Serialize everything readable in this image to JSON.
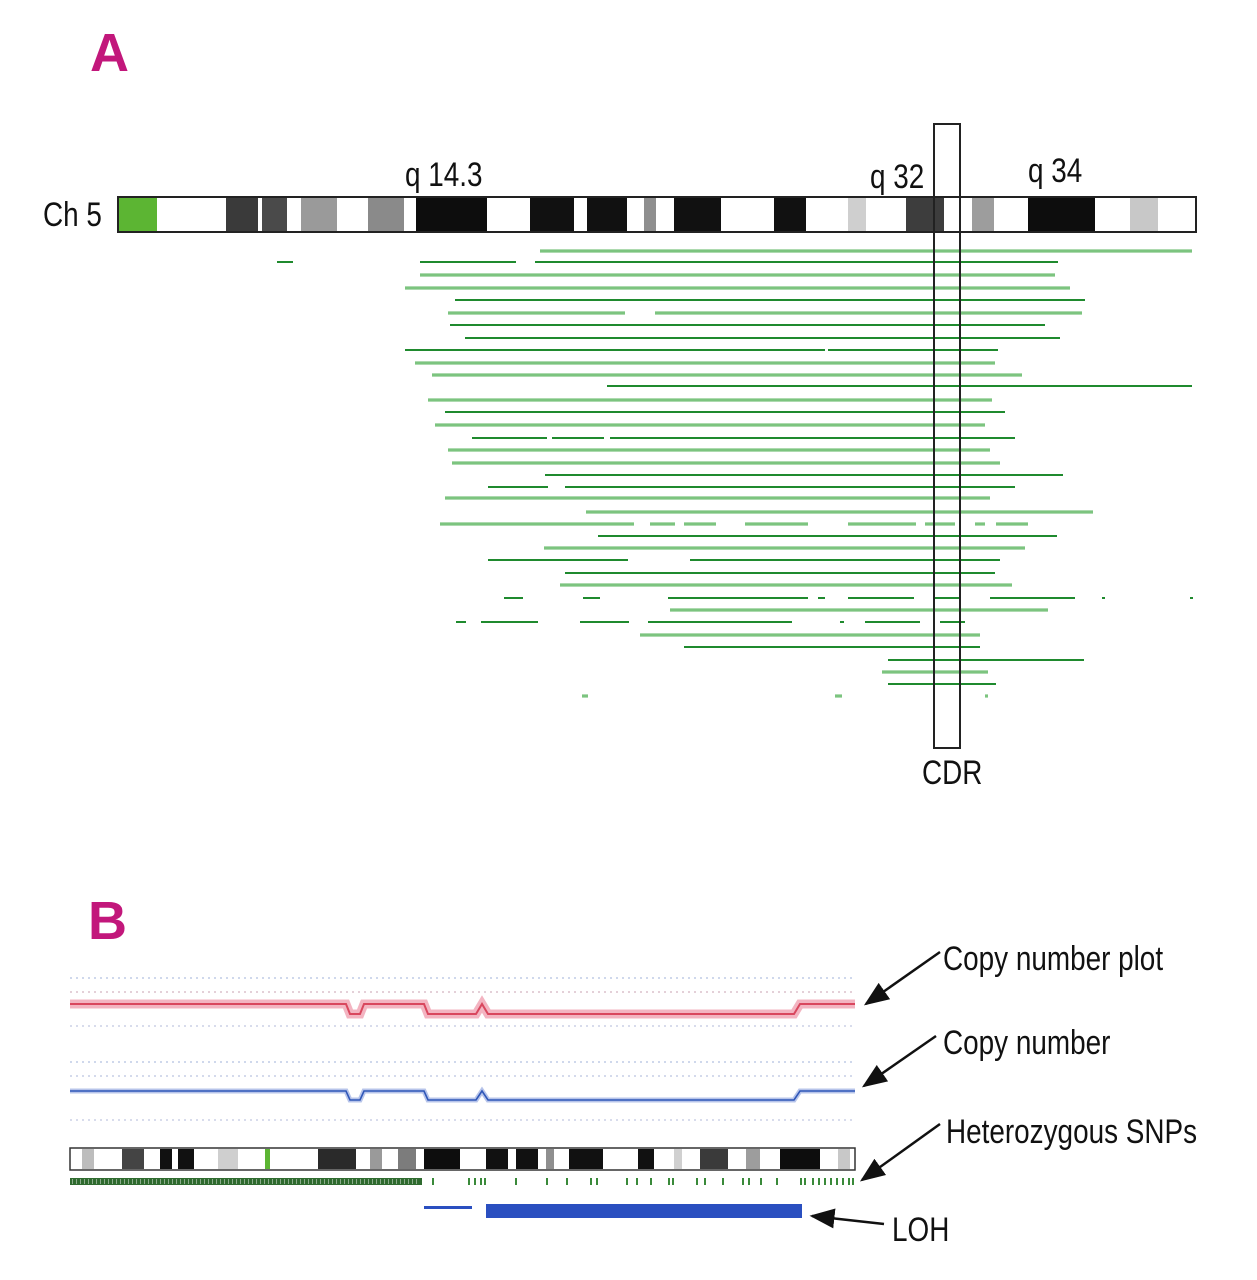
{
  "panel_a": {
    "letter": "A",
    "chromosome_label": "Ch 5",
    "band_labels": [
      "q 14.3",
      "q 32",
      "q 34"
    ],
    "cdr_label": "CDR"
  },
  "panel_b": {
    "letter": "B",
    "annotations": {
      "copy_number_plot": "Copy number plot",
      "copy_number": "Copy number",
      "heterozygous_snps": "Heterozygous SNPs",
      "loh": "LOH"
    }
  },
  "colors": {
    "panel_letter": "#c2177b",
    "segment_dark": "#1f8a2e",
    "segment_light": "#7cc47f",
    "centromere": "#5cb533",
    "copy_number_plot": "#d9475e",
    "copy_number": "#2f57b8",
    "loh_bar": "#2a4fc0"
  }
}
